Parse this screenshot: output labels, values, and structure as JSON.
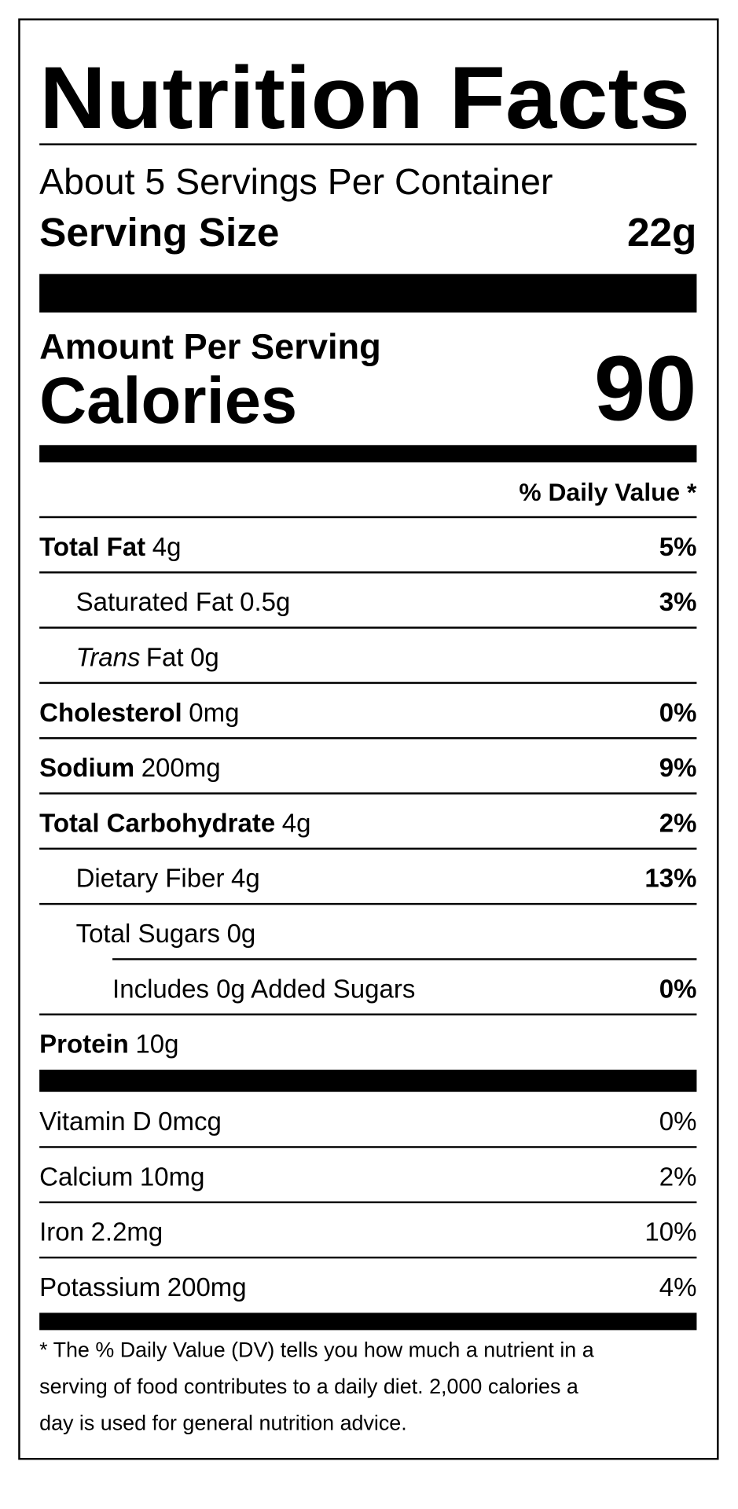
{
  "title": "Nutrition Facts",
  "servings_per_container": "About 5 Servings Per Container",
  "serving_size": {
    "label": "Serving Size",
    "value": "22g"
  },
  "amount_per_serving": "Amount Per Serving",
  "calories": {
    "label": "Calories",
    "value": 90
  },
  "daily_value_header": "% Daily Value *",
  "nutrients": [
    {
      "name": "Total Fat",
      "amount": "4g",
      "dv": "5%",
      "subs": [
        {
          "name": "Saturated Fat",
          "amount": "0.5g",
          "dv": "3%"
        },
        {
          "name_prefix": "Trans",
          "name": "Fat",
          "amount": "0g"
        }
      ]
    },
    {
      "name": "Cholesterol",
      "amount": "0mg",
      "dv": "0%"
    },
    {
      "name": "Sodium",
      "amount": "200mg",
      "dv": "9%"
    },
    {
      "name": "Total Carbohydrate",
      "amount": "4g",
      "dv": "2%",
      "subs": [
        {
          "name": "Dietary Fiber",
          "amount": "4g",
          "dv": "13%"
        },
        {
          "name": "Total Sugars",
          "amount": "0g",
          "subs": [
            {
              "name": "Includes 0g Added Sugars",
              "dv": "0%"
            }
          ]
        }
      ]
    },
    {
      "name": "Protein",
      "amount": "10g"
    }
  ],
  "vitamins": [
    {
      "name": "Vitamin D",
      "amount": "0mcg",
      "dv": "0%"
    },
    {
      "name": "Calcium",
      "amount": "10mg",
      "dv": "2%"
    },
    {
      "name": "Iron",
      "amount": "2.2mg",
      "dv": "10%"
    },
    {
      "name": "Potassium",
      "amount": "200mg",
      "dv": "4%"
    }
  ],
  "footnote": [
    "* The % Daily Value (DV) tells you how much a nutrient in a",
    "serving of food contributes to a daily diet. 2,000 calories a",
    "day is used for general nutrition advice."
  ]
}
